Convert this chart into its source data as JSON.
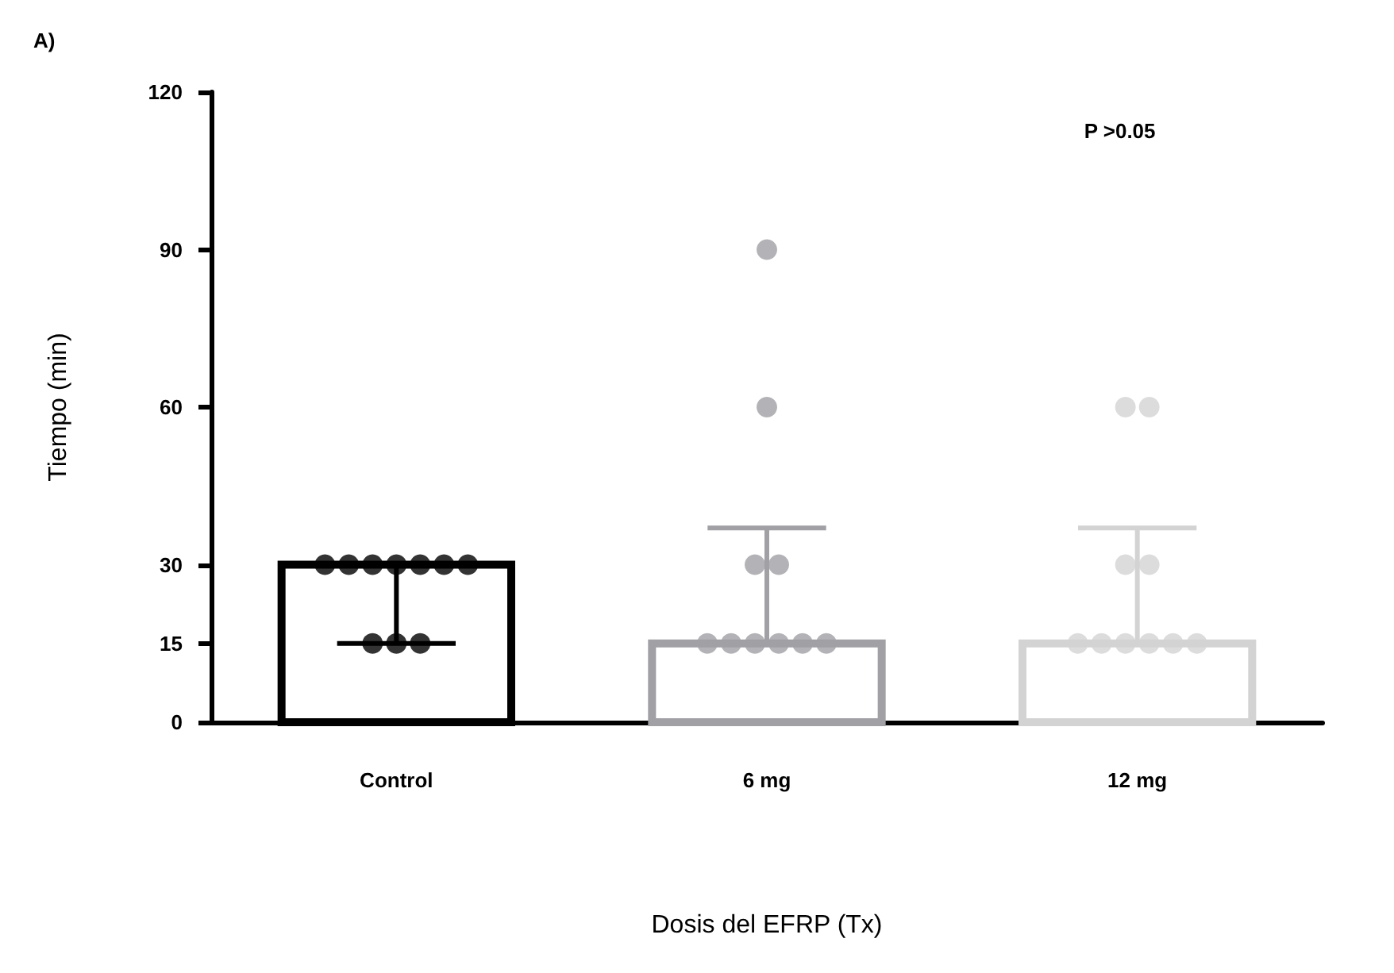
{
  "chart_data": {
    "type": "bar",
    "title": "A)",
    "xlabel": "Dosis del EFRP (Tx)",
    "ylabel": "Tiempo (min)",
    "categories": [
      "Control",
      "6 mg",
      "12 mg"
    ],
    "values": [
      30,
      15,
      15
    ],
    "colors": [
      "#000000",
      "#a0a0a5",
      "#d3d3d3"
    ],
    "errors": [
      [
        15,
        30
      ],
      [
        15,
        37
      ],
      [
        15,
        37
      ]
    ],
    "series": [
      {
        "type": "scatter",
        "x": [
          "Control",
          "Control",
          "Control",
          "Control",
          "Control",
          "Control",
          "Control",
          "Control",
          "Control",
          "Control",
          "6 mg",
          "6 mg",
          "6 mg",
          "6 mg",
          "6 mg",
          "6 mg",
          "6 mg",
          "6 mg",
          "6 mg",
          "6 mg",
          "12 mg",
          "12 mg",
          "12 mg",
          "12 mg",
          "12 mg",
          "12 mg",
          "12 mg",
          "12 mg",
          "12 mg",
          "12 mg"
        ],
        "values": [
          30,
          30,
          30,
          30,
          30,
          30,
          30,
          15,
          15,
          15,
          90,
          60,
          30,
          30,
          15,
          15,
          15,
          15,
          15,
          15,
          60,
          60,
          30,
          30,
          15,
          15,
          15,
          15,
          15,
          15
        ],
        "colors": [
          "#000000",
          "#000000",
          "#000000",
          "#000000",
          "#000000",
          "#000000",
          "#000000",
          "#000000",
          "#000000",
          "#000000",
          "#a0a0a5",
          "#a0a0a5",
          "#a0a0a5",
          "#a0a0a5",
          "#a0a0a5",
          "#a0a0a5",
          "#a0a0a5",
          "#a0a0a5",
          "#a0a0a5",
          "#a0a0a5",
          "#d3d3d3",
          "#d3d3d3",
          "#d3d3d3",
          "#d3d3d3",
          "#d3d3d3",
          "#d3d3d3",
          "#d3d3d3",
          "#d3d3d3",
          "#d3d3d3",
          "#d3d3d3"
        ]
      }
    ],
    "ylim": [
      0,
      120
    ],
    "yticks": [
      0,
      15,
      30,
      60,
      90,
      120
    ],
    "annotations": [
      "P >0.05"
    ],
    "grid": false,
    "marker": "circle"
  }
}
